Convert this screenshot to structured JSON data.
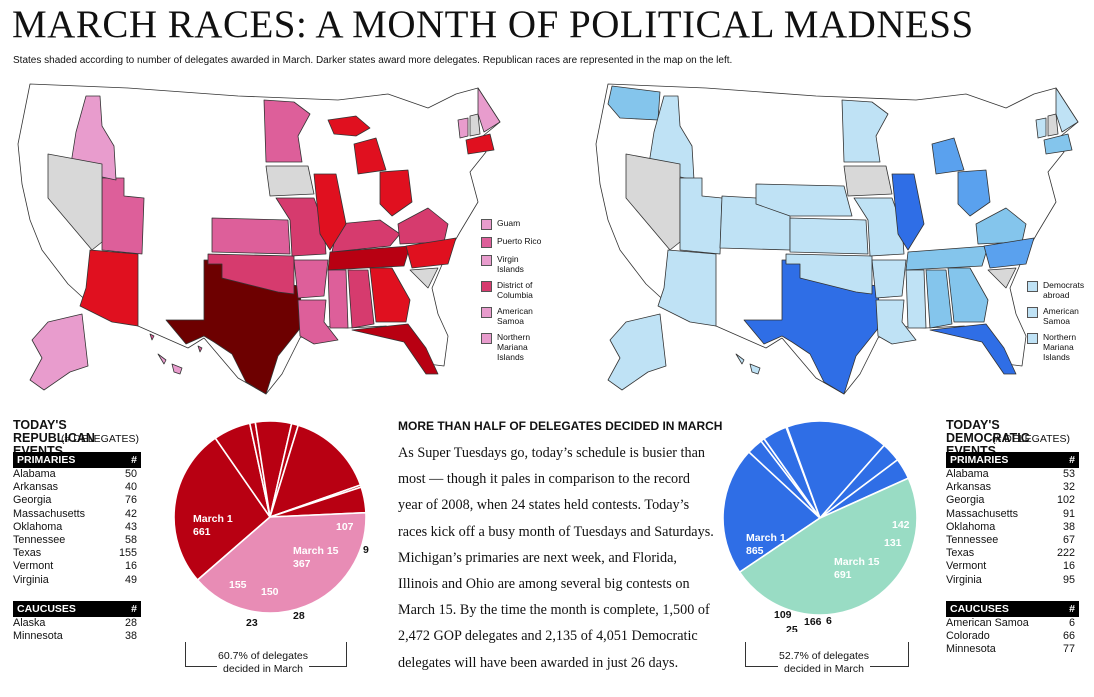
{
  "title": "MARCH RACES: A MONTH OF POLITICAL MADNESS",
  "subtitle": "States shaded according to number of delegates awarded in March. Darker states award more delegates. Republican races are represented in the map on the left.",
  "colors": {
    "rep_darkest": "#6d0000",
    "rep_dark": "#b80012",
    "rep_red": "#e0101f",
    "rep_mid": "#d63b6e",
    "rep_pink": "#dd5f9a",
    "rep_light": "#e89ccd",
    "dem_darkest": "#2f6ee6",
    "dem_mid": "#5aa1ee",
    "dem_light": "#84c5ec",
    "dem_pale": "#bfe2f5",
    "gray": "#d8d8d8",
    "teal": "#99dcc4"
  },
  "rep_legend": [
    {
      "label": "Guam",
      "color": "#e89ccd"
    },
    {
      "label": "Puerto Rico",
      "color": "#dd5f9a"
    },
    {
      "label": "Virgin Islands",
      "color": "#e89ccd"
    },
    {
      "label": "District of Columbia",
      "color": "#d63b6e"
    },
    {
      "label": "American Samoa",
      "color": "#e89ccd"
    },
    {
      "label": "Northern Mariana Islands",
      "color": "#e89ccd"
    }
  ],
  "dem_legend": [
    {
      "label": "Democrats abroad",
      "color": "#bfe2f5"
    },
    {
      "label": "American Samoa",
      "color": "#bfe2f5"
    },
    {
      "label": "Northern Mariana Islands",
      "color": "#bfe2f5"
    }
  ],
  "rep_events": {
    "title": "TODAY'S REPUBLICAN EVENTS",
    "title_suffix": "(# DELEGATES)",
    "primaries_header": "PRIMARIES",
    "count_header": "#",
    "primaries": [
      {
        "state": "Alabama",
        "n": "50"
      },
      {
        "state": "Arkansas",
        "n": "40"
      },
      {
        "state": "Georgia",
        "n": "76"
      },
      {
        "state": "Massachusetts",
        "n": "42"
      },
      {
        "state": "Oklahoma",
        "n": "43"
      },
      {
        "state": "Tennessee",
        "n": "58"
      },
      {
        "state": "Texas",
        "n": "155"
      },
      {
        "state": "Vermont",
        "n": "16"
      },
      {
        "state": "Virginia",
        "n": "49"
      }
    ],
    "caucuses_header": "CAUCUSES",
    "caucuses": [
      {
        "state": "Alaska",
        "n": "28"
      },
      {
        "state": "Minnesota",
        "n": "38"
      }
    ]
  },
  "dem_events": {
    "title": "TODAY'S DEMOCRATIC EVENTS",
    "title_suffix": "(# DELEGATES)",
    "primaries_header": "PRIMARIES",
    "count_header": "#",
    "primaries": [
      {
        "state": "Alabama",
        "n": "53"
      },
      {
        "state": "Arkansas",
        "n": "32"
      },
      {
        "state": "Georgia",
        "n": "102"
      },
      {
        "state": "Massachusetts",
        "n": "91"
      },
      {
        "state": "Oklahoma",
        "n": "38"
      },
      {
        "state": "Tennessee",
        "n": "67"
      },
      {
        "state": "Texas",
        "n": "222"
      },
      {
        "state": "Vermont",
        "n": "16"
      },
      {
        "state": "Virginia",
        "n": "95"
      }
    ],
    "caucuses_header": "CAUCUSES",
    "caucuses": [
      {
        "state": "American Samoa",
        "n": "6"
      },
      {
        "state": "Colorado",
        "n": "66"
      },
      {
        "state": "Minnesota",
        "n": "77"
      }
    ]
  },
  "article": {
    "headline": "MORE THAN HALF OF DELEGATES DECIDED IN MARCH",
    "body": "As Super Tuesdays go, today’s schedule is busier than most — though it pales in comparison to the record year of 2008, when 24 states held contests. Today’s races kick off a busy month of Tuesdays and Saturdays. Michigan’s primaries are next week, and Florida, Illinois and Ohio are among several big contests on March 15. By the time the month is complete, 1,500 of 2,472 GOP delegates and 2,135 of 4,051 Democratic delegates will have been awarded in just 26 days."
  },
  "chart_data": [
    {
      "type": "pie",
      "slices": [
        {
          "label": "March 1",
          "value": 661,
          "color": "#b80012",
          "show_label": true
        },
        {
          "label": "",
          "value": 155,
          "color": "#b80012"
        },
        {
          "label": "",
          "value": 23,
          "color": "#b80012"
        },
        {
          "label": "",
          "value": 150,
          "color": "#b80012"
        },
        {
          "label": "",
          "value": 28,
          "color": "#b80012"
        },
        {
          "label": "March 15",
          "value": 367,
          "color": "#b80012",
          "show_label": true
        },
        {
          "label": "",
          "value": 9,
          "color": "#b80012"
        },
        {
          "label": "",
          "value": 107,
          "color": "#b80012"
        },
        {
          "label": "",
          "value": 972,
          "color": "#e88cb5"
        }
      ],
      "note": "60.7% of delegates decided in March"
    },
    {
      "type": "pie",
      "slices": [
        {
          "label": "March 1",
          "value": 865,
          "color": "#2f6ee6",
          "show_label": true
        },
        {
          "label": "",
          "value": 109,
          "color": "#2f6ee6"
        },
        {
          "label": "",
          "value": 25,
          "color": "#2f6ee6"
        },
        {
          "label": "",
          "value": 166,
          "color": "#2f6ee6"
        },
        {
          "label": "",
          "value": 6,
          "color": "#2f6ee6"
        },
        {
          "label": "March 15",
          "value": 691,
          "color": "#2f6ee6",
          "show_label": true
        },
        {
          "label": "",
          "value": 131,
          "color": "#2f6ee6"
        },
        {
          "label": "",
          "value": 142,
          "color": "#2f6ee6"
        },
        {
          "label": "",
          "value": 1916,
          "color": "#99dcc4"
        }
      ],
      "note": "52.7% of delegates decided in March"
    }
  ]
}
